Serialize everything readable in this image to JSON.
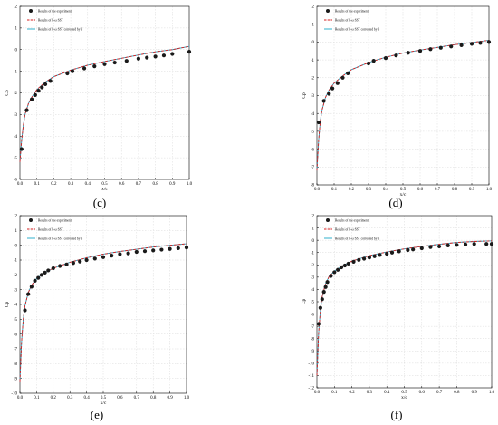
{
  "legend": {
    "experiment": "Results of the experiment",
    "kw_sst": "Results of k-ω SST",
    "kw_sst_corrected": "Results of k-ω SST corrected by β"
  },
  "colors": {
    "experiment": "#1a1a1a",
    "kw_sst": "#d62020",
    "kw_sst_corrected": "#1aa8c8",
    "grid": "#d0d0d0"
  },
  "chart_data": [
    {
      "panel": "(c)",
      "type": "line",
      "xlabel": "x/c",
      "ylabel": "Cp",
      "xlim": [
        0,
        1
      ],
      "ylim": [
        -6,
        2
      ],
      "xticks": [
        "0.0",
        "0.1",
        "0.2",
        "0.3",
        "0.4",
        "0.5",
        "0.6",
        "0.7",
        "0.8",
        "0.9",
        "1.0"
      ],
      "yticks": [
        "2",
        "1",
        "0",
        "-1",
        "-2",
        "-3",
        "-4",
        "-5",
        "-6"
      ],
      "grid": true,
      "legend_position": "top-left",
      "experiment": {
        "x": [
          0.01,
          0.04,
          0.07,
          0.09,
          0.11,
          0.13,
          0.15,
          0.18,
          0.28,
          0.31,
          0.38,
          0.44,
          0.5,
          0.56,
          0.63,
          0.7,
          0.75,
          0.8,
          0.85,
          0.9,
          1.0
        ],
        "y": [
          -4.6,
          -2.8,
          -2.3,
          -2.1,
          -1.9,
          -1.75,
          -1.6,
          -1.45,
          -1.1,
          -1.0,
          -0.87,
          -0.77,
          -0.67,
          -0.6,
          -0.52,
          -0.42,
          -0.37,
          -0.32,
          -0.27,
          -0.2,
          -0.1
        ]
      },
      "curve": {
        "x": [
          0.0,
          0.01,
          0.02,
          0.03,
          0.05,
          0.07,
          0.1,
          0.15,
          0.2,
          0.3,
          0.4,
          0.5,
          0.6,
          0.7,
          0.8,
          0.9,
          1.0
        ],
        "y": [
          -5.2,
          -4.2,
          -3.5,
          -3.0,
          -2.5,
          -2.2,
          -1.85,
          -1.5,
          -1.25,
          -0.95,
          -0.72,
          -0.55,
          -0.4,
          -0.25,
          -0.1,
          0.0,
          0.15
        ]
      }
    },
    {
      "panel": "(d)",
      "type": "line",
      "xlabel": "x/c",
      "ylabel": "Cp",
      "xlim": [
        0,
        1
      ],
      "ylim": [
        -8,
        2
      ],
      "xticks": [
        "0.0",
        "0.1",
        "0.2",
        "0.3",
        "0.4",
        "0.5",
        "0.6",
        "0.7",
        "0.8",
        "0.9",
        "1.0"
      ],
      "yticks": [
        "2",
        "1",
        "0",
        "-1",
        "-2",
        "-3",
        "-4",
        "-5",
        "-6",
        "-7",
        "-8"
      ],
      "grid": true,
      "legend_position": "top-left",
      "experiment": {
        "x": [
          0.01,
          0.04,
          0.07,
          0.09,
          0.12,
          0.15,
          0.18,
          0.3,
          0.33,
          0.4,
          0.46,
          0.53,
          0.6,
          0.66,
          0.72,
          0.78,
          0.84,
          0.9,
          0.95,
          1.0
        ],
        "y": [
          -4.5,
          -3.3,
          -2.9,
          -2.6,
          -2.3,
          -2.0,
          -1.75,
          -1.2,
          -1.05,
          -0.9,
          -0.75,
          -0.6,
          -0.5,
          -0.4,
          -0.32,
          -0.25,
          -0.18,
          -0.1,
          -0.05,
          0.0
        ]
      },
      "curve": {
        "x": [
          0.0,
          0.01,
          0.02,
          0.03,
          0.05,
          0.07,
          0.1,
          0.15,
          0.2,
          0.3,
          0.4,
          0.5,
          0.6,
          0.7,
          0.8,
          0.9,
          1.0
        ],
        "y": [
          -7.2,
          -5.5,
          -4.4,
          -3.8,
          -3.1,
          -2.7,
          -2.3,
          -1.9,
          -1.55,
          -1.15,
          -0.85,
          -0.62,
          -0.45,
          -0.3,
          -0.15,
          -0.03,
          0.1
        ]
      }
    },
    {
      "panel": "(e)",
      "type": "line",
      "xlabel": "x/c",
      "ylabel": "Cp",
      "xlim": [
        0,
        1
      ],
      "ylim": [
        -10,
        2
      ],
      "xticks": [
        "0.0",
        "0.1",
        "0.2",
        "0.3",
        "0.4",
        "0.5",
        "0.6",
        "0.7",
        "0.8",
        "0.9",
        "1.0"
      ],
      "yticks": [
        "2",
        "1",
        "0",
        "-1",
        "-2",
        "-3",
        "-4",
        "-5",
        "-6",
        "-7",
        "-8",
        "-9",
        "-10"
      ],
      "grid": true,
      "legend_position": "top-left",
      "experiment": {
        "x": [
          0.03,
          0.05,
          0.07,
          0.09,
          0.11,
          0.13,
          0.15,
          0.17,
          0.2,
          0.24,
          0.28,
          0.32,
          0.36,
          0.4,
          0.45,
          0.5,
          0.55,
          0.6,
          0.65,
          0.7,
          0.75,
          0.8,
          0.85,
          0.9,
          0.95,
          1.0
        ],
        "y": [
          -4.4,
          -3.3,
          -2.8,
          -2.4,
          -2.2,
          -2.0,
          -1.85,
          -1.7,
          -1.55,
          -1.4,
          -1.3,
          -1.2,
          -1.1,
          -1.0,
          -0.9,
          -0.8,
          -0.7,
          -0.6,
          -0.55,
          -0.45,
          -0.4,
          -0.35,
          -0.3,
          -0.25,
          -0.2,
          -0.15
        ]
      },
      "curve": {
        "x": [
          0.0,
          0.01,
          0.02,
          0.03,
          0.05,
          0.07,
          0.1,
          0.15,
          0.2,
          0.3,
          0.4,
          0.5,
          0.6,
          0.7,
          0.8,
          0.9,
          1.0
        ],
        "y": [
          -9.2,
          -6.5,
          -5.0,
          -4.1,
          -3.2,
          -2.7,
          -2.25,
          -1.85,
          -1.55,
          -1.15,
          -0.85,
          -0.6,
          -0.42,
          -0.27,
          -0.12,
          0.0,
          0.1
        ]
      }
    },
    {
      "panel": "(f)",
      "type": "line",
      "xlabel": "x/c",
      "ylabel": "Cp",
      "xlim": [
        0,
        1
      ],
      "ylim": [
        -12,
        2
      ],
      "xticks": [
        "0.0",
        "0.1",
        "0.2",
        "0.3",
        "0.4",
        "0.5",
        "0.6",
        "0.7",
        "0.8",
        "0.9",
        "1.0"
      ],
      "yticks": [
        "2",
        "1",
        "0",
        "-1",
        "-2",
        "-3",
        "-4",
        "-5",
        "-6",
        "-7",
        "-8",
        "-9",
        "-10",
        "-11",
        "-12"
      ],
      "grid": true,
      "legend_position": "top-left",
      "experiment": {
        "x": [
          0.01,
          0.02,
          0.03,
          0.04,
          0.05,
          0.06,
          0.08,
          0.1,
          0.12,
          0.14,
          0.16,
          0.18,
          0.21,
          0.24,
          0.27,
          0.3,
          0.33,
          0.36,
          0.4,
          0.43,
          0.47,
          0.52,
          0.55,
          0.6,
          0.65,
          0.7,
          0.75,
          0.8,
          0.85,
          0.9,
          0.97,
          1.0
        ],
        "y": [
          -6.8,
          -5.5,
          -4.8,
          -4.2,
          -3.8,
          -3.4,
          -2.9,
          -2.6,
          -2.4,
          -2.2,
          -2.05,
          -1.9,
          -1.75,
          -1.6,
          -1.5,
          -1.4,
          -1.3,
          -1.2,
          -1.1,
          -1.0,
          -0.9,
          -0.8,
          -0.75,
          -0.65,
          -0.55,
          -0.5,
          -0.42,
          -0.38,
          -0.35,
          -0.3,
          -0.3,
          -0.3
        ]
      },
      "curve": {
        "x": [
          0.0,
          0.01,
          0.02,
          0.03,
          0.05,
          0.07,
          0.1,
          0.15,
          0.2,
          0.3,
          0.4,
          0.5,
          0.6,
          0.7,
          0.8,
          0.9,
          1.0
        ],
        "y": [
          -11.0,
          -7.5,
          -5.7,
          -4.6,
          -3.5,
          -2.95,
          -2.5,
          -2.05,
          -1.7,
          -1.25,
          -0.95,
          -0.7,
          -0.5,
          -0.33,
          -0.18,
          -0.1,
          -0.05
        ]
      }
    }
  ]
}
